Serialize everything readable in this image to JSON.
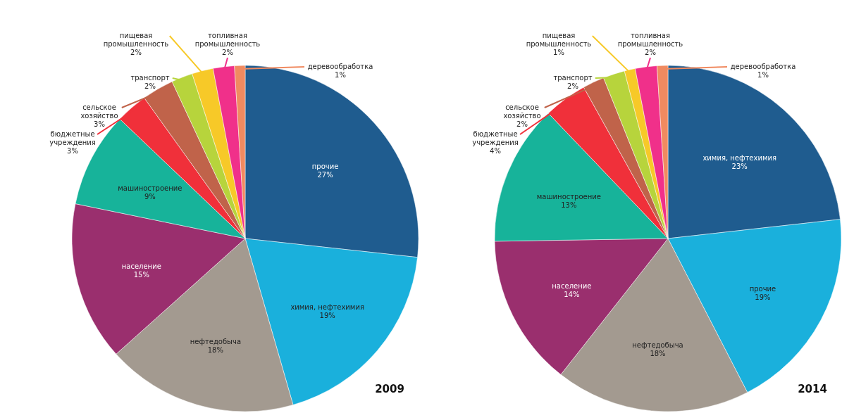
{
  "chart_data": [
    {
      "type": "pie",
      "title": "2009",
      "categories": [
        "прочие",
        "химия, нефтехимия",
        "нефтедобыча",
        "население",
        "машиностроение",
        "бюджетные учреждения",
        "сельское хозяйство",
        "транспорт",
        "пищевая промышленность",
        "топливная промышленность",
        "деревообработка"
      ],
      "values": [
        27,
        19,
        18,
        15,
        9,
        3,
        3,
        2,
        2,
        2,
        1
      ],
      "value_labels": [
        "27%",
        "19%",
        "18%",
        "15%",
        "9%",
        "3%",
        "3%",
        "2%",
        "2%",
        "2%",
        "1%"
      ],
      "colors": [
        "#1f5c8f",
        "#1ab0dc",
        "#a39a90",
        "#9a2f6e",
        "#17b39a",
        "#f0303a",
        "#c0634a",
        "#b7d43c",
        "#f7c928",
        "#f0308a",
        "#f08a60"
      ]
    },
    {
      "type": "pie",
      "title": "2014",
      "categories": [
        "химия, нефтехимия",
        "прочие",
        "нефтедобыча",
        "население",
        "машиностроение",
        "бюджетные учреждения",
        "сельское хозяйство",
        "транспорт",
        "пищевая промышленность",
        "топливная промышленность",
        "деревообработка"
      ],
      "values": [
        23,
        19,
        18,
        14,
        13,
        4,
        2,
        2,
        1,
        2,
        1
      ],
      "value_labels": [
        "23%",
        "19%",
        "18%",
        "14%",
        "13%",
        "4%",
        "2%",
        "2%",
        "1%",
        "2%",
        "1%"
      ],
      "colors": [
        "#1f5c8f",
        "#1ab0dc",
        "#a39a90",
        "#9a2f6e",
        "#17b39a",
        "#f0303a",
        "#c0634a",
        "#b7d43c",
        "#f7c928",
        "#f0308a",
        "#f08a60"
      ]
    }
  ]
}
